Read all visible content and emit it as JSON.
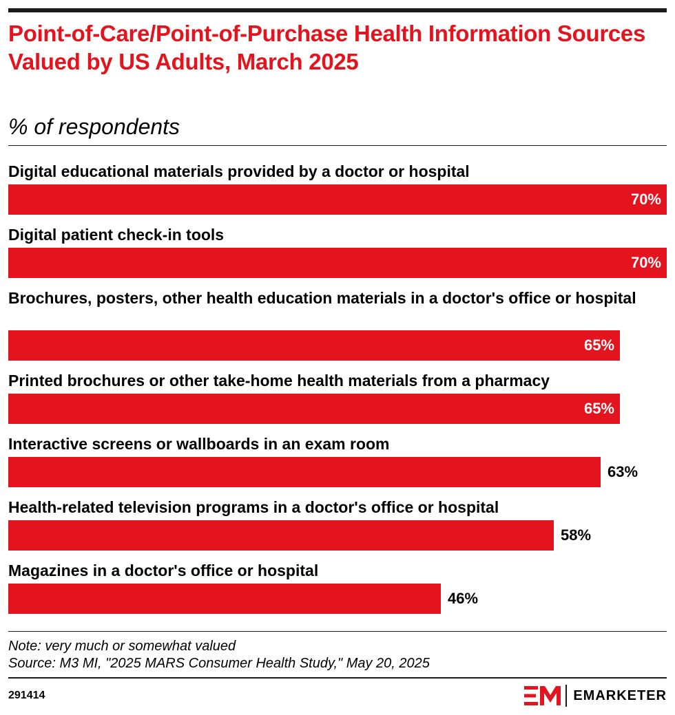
{
  "header": {
    "title": "Point-of-Care/Point-of-Purchase Health Information Sources Valued by US Adults, March 2025",
    "subtitle": "% of respondents"
  },
  "chart_data": {
    "type": "bar",
    "orientation": "horizontal",
    "categories": [
      "Digital educational materials provided by a doctor or hospital",
      "Digital patient check-in tools",
      "Brochures, posters, other health education materials in a doctor's office or hospital",
      "Printed brochures or other take-home health materials from a pharmacy",
      "Interactive screens or wallboards in an exam room",
      "Health-related television programs in a doctor's office or hospital",
      "Magazines in a doctor's office or hospital"
    ],
    "values": [
      70,
      70,
      65,
      65,
      63,
      58,
      46
    ],
    "value_labels": [
      "70%",
      "70%",
      "65%",
      "65%",
      "63%",
      "58%",
      "46%"
    ],
    "title": "Point-of-Care/Point-of-Purchase Health Information Sources Valued by US Adults, March 2025",
    "subtitle": "% of respondents",
    "xlim": [
      0,
      70
    ],
    "grid": false,
    "legend": "none"
  },
  "footer": {
    "note": "Note: very much or somewhat valued",
    "source": "Source: M3 MI, \"2025 MARS Consumer Health Study,\" May 20, 2025",
    "chart_id": "291414",
    "brand": "EMARKETER"
  },
  "colors": {
    "bar": "#e3141e",
    "title": "#e3141e",
    "label_inside": "#ffffff",
    "label_outside": "#000000",
    "rule": "#1a1a1a"
  }
}
